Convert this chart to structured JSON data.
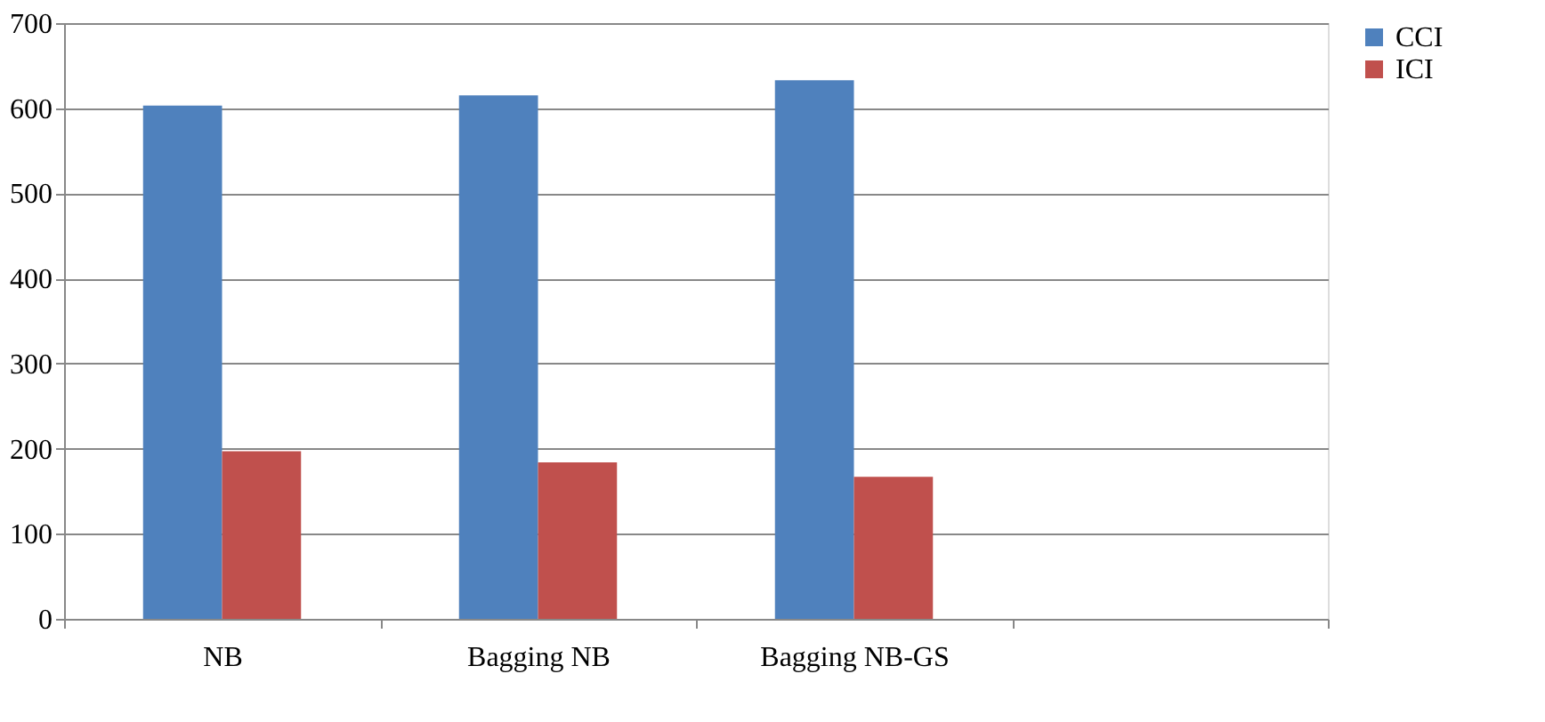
{
  "chart_data": {
    "type": "bar",
    "categories": [
      "NB",
      "Bagging NB",
      "Bagging NB-GS",
      null
    ],
    "series": [
      {
        "name": "CCI",
        "color": "#4f81bd",
        "values": [
          603,
          615,
          633,
          null
        ]
      },
      {
        "name": "ICI",
        "color": "#c0504d",
        "values": [
          197,
          184,
          167,
          null
        ]
      }
    ],
    "ylim": [
      0,
      700
    ],
    "yticks": [
      0,
      100,
      200,
      300,
      400,
      500,
      600,
      700
    ],
    "grid": "y",
    "legend": "right"
  }
}
